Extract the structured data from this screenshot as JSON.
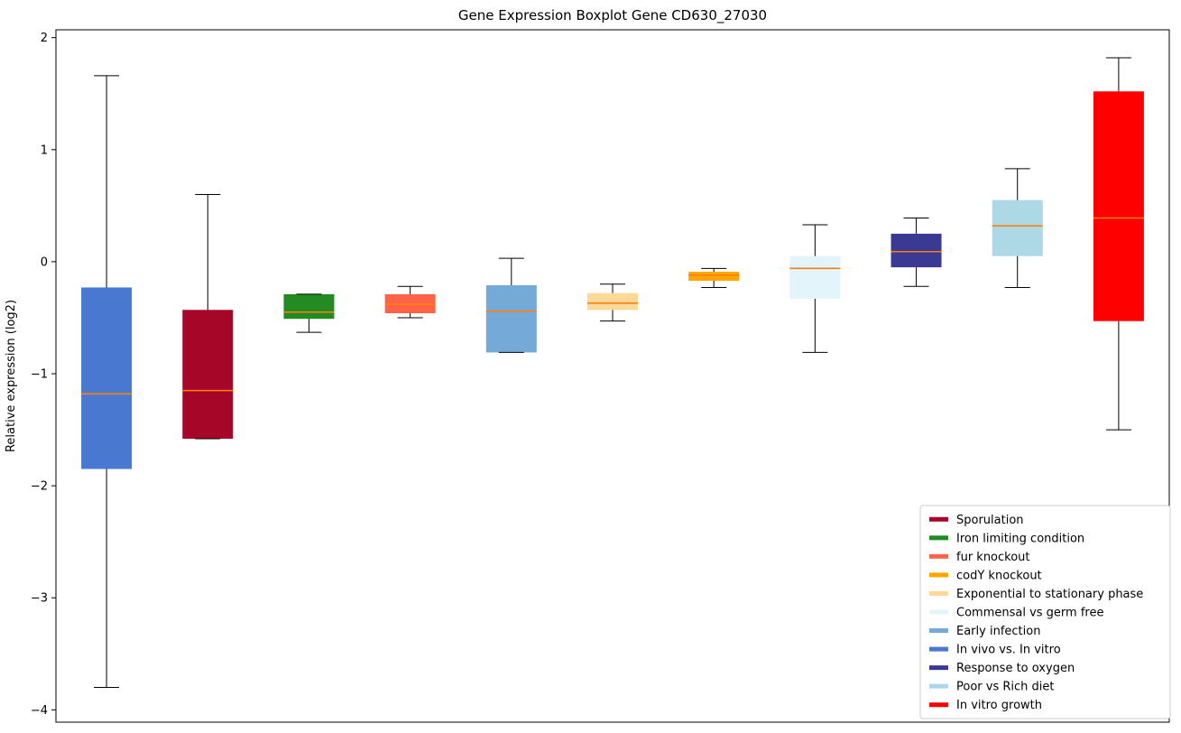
{
  "figure": {
    "background": "#ffffff"
  },
  "chart_data": {
    "type": "boxplot",
    "title": "Gene Expression Boxplot Gene CD630_27030",
    "ylabel": "Relative expression (log2)",
    "ylim": [
      -4.11,
      2.07
    ],
    "yticks": [
      2,
      1,
      0,
      -1,
      -2,
      -3,
      -4
    ],
    "yticklabels": [
      "2",
      "1",
      "0",
      "−1",
      "−2",
      "−3",
      "−4"
    ],
    "grid": false,
    "x_tick_labels_shown": false,
    "median_color": "#ff7f0e",
    "whisker_color": "#000000",
    "frame_color": "#000000",
    "legend_position": "lower right",
    "legend_border_color": "#cccccc",
    "boxes": [
      {
        "label": "In vivo vs. In vitro",
        "color": "#4878CF",
        "whislo": -3.8,
        "q1": -1.85,
        "med": -1.18,
        "q3": -0.23,
        "whishi": 1.66
      },
      {
        "label": "Sporulation",
        "color": "#A60628",
        "whislo": -1.58,
        "q1": -1.58,
        "med": -1.15,
        "q3": -0.43,
        "whishi": 0.6
      },
      {
        "label": "Iron limiting condition",
        "color": "#228B22",
        "whislo": -0.63,
        "q1": -0.51,
        "med": -0.45,
        "q3": -0.29,
        "whishi": -0.29
      },
      {
        "label": "fur knockout",
        "color": "#FF6347",
        "whislo": -0.5,
        "q1": -0.46,
        "med": -0.38,
        "q3": -0.29,
        "whishi": -0.22
      },
      {
        "label": "Early infection",
        "color": "#74A9D8",
        "whislo": -0.81,
        "q1": -0.81,
        "med": -0.44,
        "q3": -0.21,
        "whishi": 0.03
      },
      {
        "label": "Exponential to stationary phase",
        "color": "#FFD998",
        "whislo": -0.53,
        "q1": -0.43,
        "med": -0.37,
        "q3": -0.28,
        "whishi": -0.2
      },
      {
        "label": "codY knockout",
        "color": "#FFA500",
        "whislo": -0.23,
        "q1": -0.17,
        "med": -0.12,
        "q3": -0.09,
        "whishi": -0.06
      },
      {
        "label": "Commensal vs germ free",
        "color": "#E3F4FA",
        "whislo": -0.81,
        "q1": -0.33,
        "med": -0.06,
        "q3": 0.05,
        "whishi": 0.33
      },
      {
        "label": "Response to oxygen",
        "color": "#3A3A94",
        "whislo": -0.22,
        "q1": -0.05,
        "med": 0.09,
        "q3": 0.25,
        "whishi": 0.39
      },
      {
        "label": "Poor vs Rich diet",
        "color": "#ADD8E6",
        "whislo": -0.23,
        "q1": 0.05,
        "med": 0.32,
        "q3": 0.55,
        "whishi": 0.83
      },
      {
        "label": "In vitro growth",
        "color": "#FF0000",
        "whislo": -1.5,
        "q1": -0.53,
        "med": 0.39,
        "q3": 1.52,
        "whishi": 1.82
      }
    ],
    "legend": [
      {
        "label": "Sporulation",
        "color": "#A60628"
      },
      {
        "label": "Iron limiting condition",
        "color": "#228B22"
      },
      {
        "label": "fur knockout",
        "color": "#FF6347"
      },
      {
        "label": "codY knockout",
        "color": "#FFA500"
      },
      {
        "label": "Exponential to stationary phase",
        "color": "#FFD998"
      },
      {
        "label": "Commensal vs germ free",
        "color": "#E3F4FA"
      },
      {
        "label": "Early infection",
        "color": "#74A9D8"
      },
      {
        "label": "In vivo vs. In vitro",
        "color": "#4878CF"
      },
      {
        "label": "Response to oxygen",
        "color": "#3A3A94"
      },
      {
        "label": "Poor vs Rich diet",
        "color": "#ADD8E6"
      },
      {
        "label": "In vitro growth",
        "color": "#FF0000"
      }
    ]
  }
}
